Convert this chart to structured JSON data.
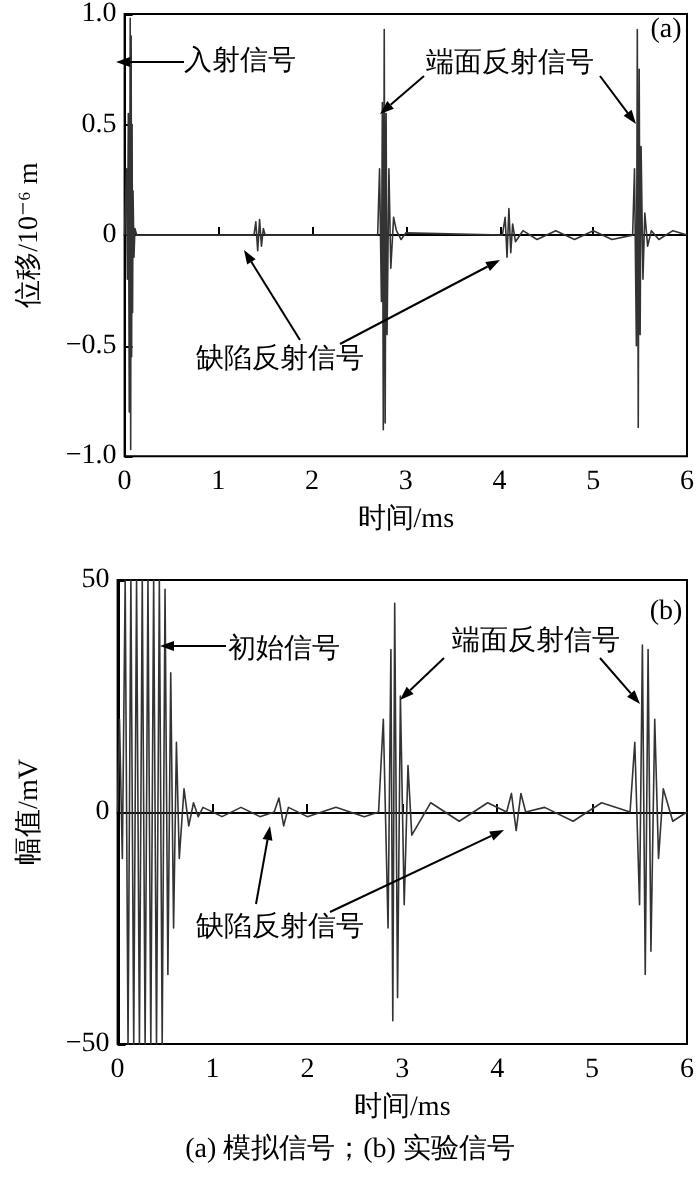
{
  "chart_data": [
    {
      "type": "line",
      "xlabel": "时间/ms",
      "ylabel": "位移/10⁻⁶ m",
      "annotations": [
        "入射信号",
        "端面反射信号",
        "缺陷反射信号",
        "(a)"
      ],
      "xlim": [
        0,
        6
      ],
      "xticks": [
        0,
        1,
        2,
        3,
        4,
        5,
        6
      ],
      "ylim": [
        -1,
        1
      ],
      "yticks": [
        {
          "value": -1,
          "label": "−1.0"
        },
        {
          "value": -0.5,
          "label": "−0.5"
        },
        0,
        0.5,
        {
          "value": 1,
          "label": "1.0"
        }
      ],
      "series": [
        {
          "color": "#333333",
          "x": [
            0,
            0.02,
            0.03,
            0.04,
            0.05,
            0.06,
            0.065,
            0.07,
            0.075,
            0.08,
            0.085,
            0.09,
            0.1,
            0.11,
            0.13,
            1.38,
            1.4,
            1.42,
            1.44,
            1.46,
            1.48,
            1.5,
            2.7,
            2.72,
            2.74,
            2.75,
            2.76,
            2.77,
            2.78,
            2.79,
            2.8,
            2.82,
            2.84,
            2.87,
            2.9,
            2.95,
            3.0,
            4.03,
            4.06,
            4.08,
            4.1,
            4.12,
            4.14,
            4.17,
            4.25,
            4.4,
            4.6,
            4.8,
            5.0,
            5.2,
            5.42,
            5.44,
            5.46,
            5.47,
            5.48,
            5.49,
            5.5,
            5.51,
            5.53,
            5.55,
            5.58,
            5.62,
            5.7,
            5.85,
            6
          ],
          "values": [
            0,
            0.3,
            -0.2,
            0.55,
            -0.8,
            0.98,
            -0.97,
            0.9,
            -0.55,
            0.5,
            -0.35,
            0.2,
            -0.1,
            0.03,
            0,
            0,
            0.06,
            -0.07,
            0.07,
            -0.05,
            0.03,
            0,
            0,
            0.3,
            -0.3,
            0.6,
            -0.88,
            0.93,
            -0.85,
            0.55,
            -0.45,
            0.3,
            -0.15,
            0.08,
            0.02,
            -0.02,
            0.01,
            0,
            0.08,
            -0.1,
            0.12,
            -0.08,
            0.05,
            -0.03,
            0.02,
            -0.02,
            0.02,
            -0.02,
            0.02,
            -0.02,
            0,
            0.3,
            -0.5,
            0.93,
            -0.87,
            0.75,
            -0.45,
            0.4,
            -0.2,
            0.1,
            -0.05,
            0.02,
            -0.02,
            0.02,
            0
          ]
        }
      ]
    },
    {
      "type": "line",
      "xlabel": "时间/ms",
      "ylabel": "幅值/mV",
      "annotations": [
        "初始信号",
        "端面反射信号",
        "缺陷反射信号",
        "(b)",
        "(a) 模拟信号；(b) 实验信号"
      ],
      "xlim": [
        0,
        6
      ],
      "xticks": [
        0,
        1,
        2,
        3,
        4,
        5,
        6
      ],
      "ylim": [
        -50,
        50
      ],
      "yticks": [
        {
          "value": -50,
          "label": "−50"
        },
        0,
        50
      ],
      "series": [
        {
          "color": "#333333",
          "x": [
            0,
            0.02,
            0.05,
            0.08,
            0.11,
            0.14,
            0.17,
            0.2,
            0.23,
            0.26,
            0.29,
            0.32,
            0.35,
            0.38,
            0.41,
            0.44,
            0.47,
            0.5,
            0.53,
            0.56,
            0.59,
            0.62,
            0.65,
            0.7,
            0.75,
            0.8,
            0.85,
            0.9,
            1.1,
            1.3,
            1.5,
            1.65,
            1.7,
            1.75,
            1.8,
            2.0,
            2.3,
            2.6,
            2.75,
            2.8,
            2.85,
            2.88,
            2.9,
            2.92,
            2.95,
            2.98,
            3.02,
            3.06,
            3.1,
            3.3,
            3.6,
            3.9,
            4.1,
            4.15,
            4.2,
            4.25,
            4.3,
            4.5,
            4.8,
            5.1,
            5.4,
            5.45,
            5.5,
            5.53,
            5.56,
            5.59,
            5.62,
            5.66,
            5.7,
            5.75,
            5.85,
            6
          ],
          "values": [
            0,
            20,
            -10,
            50,
            -50,
            50,
            -50,
            50,
            -50,
            50,
            -50,
            50,
            -50,
            50,
            -50,
            50,
            -50,
            48,
            -35,
            30,
            -25,
            15,
            -10,
            5,
            -3,
            2,
            -1,
            1,
            -1,
            1,
            -1,
            0,
            3,
            -3,
            1,
            -1,
            1,
            -1,
            0,
            20,
            -25,
            35,
            -45,
            45,
            -40,
            25,
            -20,
            10,
            -5,
            2,
            -2,
            2,
            0,
            4,
            -4,
            4,
            0,
            1,
            -2,
            2,
            0,
            15,
            -20,
            36,
            -35,
            35,
            -30,
            20,
            -10,
            5,
            -2,
            0
          ]
        }
      ]
    }
  ]
}
